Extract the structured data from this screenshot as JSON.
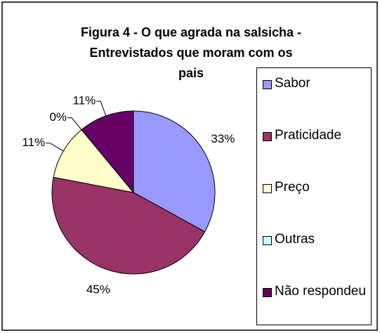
{
  "chart_data": {
    "type": "pie",
    "title": [
      "Figura 4 - O que agrada na salsicha -",
      "Entrevistados que moram com os",
      "pais"
    ],
    "categories": [
      "Sabor",
      "Praticidade",
      "Preço",
      "Outras",
      "Não respondeu"
    ],
    "values": [
      33,
      45,
      11,
      0,
      11
    ],
    "value_labels": [
      "33%",
      "45%",
      "11%",
      "0%",
      "11%"
    ],
    "colors": [
      "#9999ff",
      "#993366",
      "#ffffcc",
      "#ccffff",
      "#660066"
    ],
    "legend": "right"
  }
}
